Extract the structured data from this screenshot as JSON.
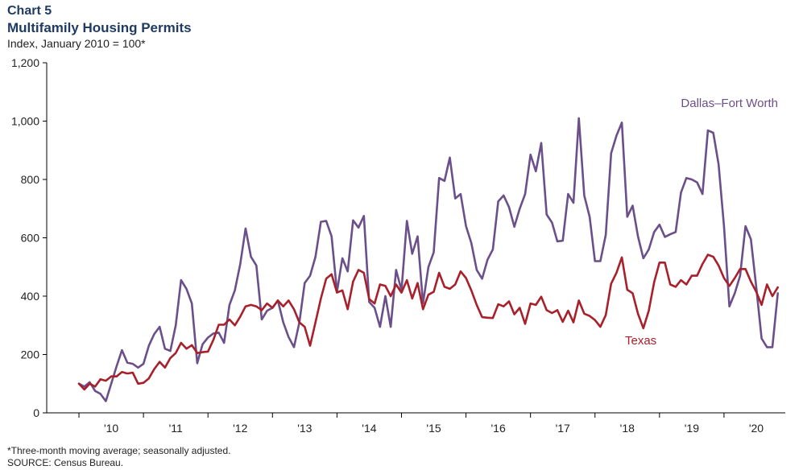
{
  "header": {
    "chart_number": "Chart 5",
    "title": "Multifamily Housing Permits",
    "subtitle": "Index, January 2010 = 100*"
  },
  "footer": {
    "note": "*Three-month moving average; seasonally adjusted.",
    "source": "SOURCE: Census Bureau."
  },
  "colors": {
    "dfw": "#6b4f8a",
    "texas": "#a8202a",
    "axis": "#000000"
  },
  "chart_data": {
    "type": "line",
    "title": "Multifamily Housing Permits",
    "ylabel": "Index, January 2010 = 100*",
    "xlabel": "",
    "ylim": [
      0,
      1200
    ],
    "yticks": [
      0,
      200,
      400,
      600,
      800,
      1000,
      1200
    ],
    "ytick_labels": [
      "0",
      "200",
      "400",
      "600",
      "800",
      "1,000",
      "1,200"
    ],
    "xlim": [
      2009.5,
      2020.95
    ],
    "xticks": [
      {
        "x": 2010.5,
        "label": "'10"
      },
      {
        "x": 2011.5,
        "label": "'11"
      },
      {
        "x": 2012.5,
        "label": "'12"
      },
      {
        "x": 2013.5,
        "label": "'13"
      },
      {
        "x": 2014.5,
        "label": "'14"
      },
      {
        "x": 2015.5,
        "label": "'15"
      },
      {
        "x": 2016.5,
        "label": "'16"
      },
      {
        "x": 2017.5,
        "label": "'17"
      },
      {
        "x": 2018.5,
        "label": "'18"
      },
      {
        "x": 2019.5,
        "label": "'19"
      },
      {
        "x": 2020.5,
        "label": "'20"
      }
    ],
    "x_start": 2010.0,
    "x_step_months": 1,
    "grid": false,
    "series": [
      {
        "name": "Dallas–Fort Worth",
        "color": "#6b4f8a",
        "values": [
          100,
          90,
          105,
          75,
          65,
          40,
          100,
          160,
          215,
          172,
          168,
          155,
          168,
          230,
          270,
          295,
          220,
          212,
          300,
          455,
          425,
          375,
          170,
          235,
          258,
          272,
          275,
          240,
          370,
          420,
          510,
          632,
          535,
          505,
          320,
          350,
          360,
          385,
          310,
          260,
          225,
          310,
          445,
          470,
          535,
          655,
          658,
          605,
          415,
          530,
          485,
          660,
          635,
          675,
          380,
          360,
          295,
          400,
          295,
          490,
          420,
          658,
          545,
          605,
          375,
          500,
          550,
          805,
          795,
          875,
          735,
          750,
          640,
          582,
          490,
          460,
          525,
          560,
          725,
          745,
          705,
          638,
          700,
          750,
          885,
          828,
          925,
          680,
          652,
          588,
          590,
          750,
          720,
          1010,
          745,
          672,
          520,
          520,
          610,
          890,
          950,
          995,
          672,
          710,
          605,
          530,
          560,
          620,
          645,
          603,
          612,
          620,
          755,
          805,
          800,
          790,
          750,
          968,
          960,
          852,
          640,
          365,
          410,
          470,
          640,
          595,
          430,
          255,
          225,
          225,
          410
        ],
        "label": "Dallas–Fort Worth",
        "label_position": "upper right"
      },
      {
        "name": "Texas",
        "color": "#a8202a",
        "values": [
          100,
          80,
          100,
          90,
          115,
          110,
          125,
          125,
          140,
          135,
          138,
          100,
          103,
          118,
          150,
          175,
          155,
          188,
          205,
          240,
          220,
          232,
          205,
          208,
          210,
          250,
          302,
          302,
          320,
          300,
          330,
          365,
          370,
          365,
          352,
          375,
          360,
          385,
          365,
          385,
          355,
          310,
          295,
          230,
          310,
          392,
          460,
          475,
          412,
          420,
          355,
          450,
          490,
          480,
          390,
          375,
          440,
          435,
          400,
          440,
          412,
          455,
          392,
          445,
          355,
          405,
          415,
          480,
          432,
          425,
          440,
          485,
          462,
          420,
          370,
          328,
          326,
          325,
          372,
          365,
          382,
          338,
          360,
          305,
          375,
          370,
          398,
          352,
          342,
          352,
          312,
          350,
          310,
          385,
          340,
          332,
          318,
          295,
          335,
          443,
          480,
          533,
          422,
          410,
          340,
          290,
          350,
          448,
          515,
          515,
          440,
          432,
          455,
          440,
          470,
          470,
          510,
          542,
          535,
          505,
          462,
          435,
          462,
          493,
          493,
          450,
          415,
          370,
          440,
          400,
          430
        ],
        "label": "Texas",
        "label_position": "lower right"
      }
    ]
  }
}
